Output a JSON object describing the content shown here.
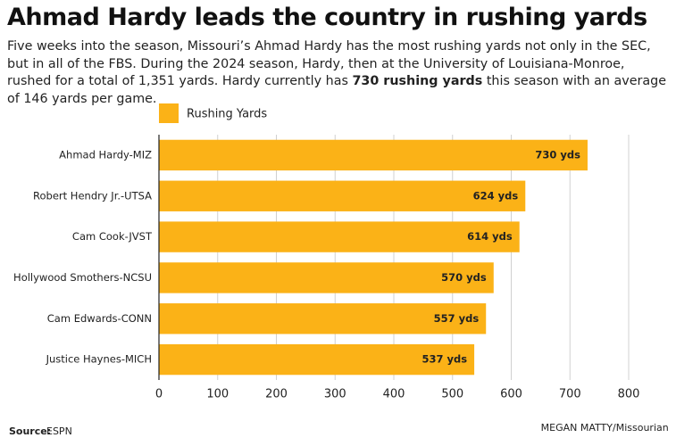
{
  "chart_data": {
    "type": "bar",
    "orientation": "horizontal",
    "title": "Ahmad Hardy leads the country in rushing yards",
    "subtitle": [
      "Five weeks into the season, Missouri’s Ahmad Hardy has the most rushing yards not only in the SEC, but in all of the FBS. During the 2024 season, Hardy, then at the University of Louisiana-Monroe, rushed for a total of 1,351 yards. Hardy currently has",
      "730 rushing yards",
      "this season with an average of 146 yards per game."
    ],
    "categories": [
      "Ahmad Hardy-MIZ",
      "Robert Hendry Jr.-UTSA",
      "Cam Cook-JVST",
      "Hollywood Smothers-NCSU",
      "Cam Edwards-CONN",
      "Justice Haynes-MICH"
    ],
    "series": [
      {
        "name": "Rushing Yards",
        "color": "#fbb217",
        "values": [
          730,
          624,
          614,
          570,
          557,
          537
        ],
        "value_labels": [
          "730 yds",
          "624 yds",
          "614 yds",
          "570 yds",
          "557 yds",
          "537 yds"
        ]
      }
    ],
    "xlim": [
      0,
      800
    ],
    "xticks": [
      0,
      100,
      200,
      300,
      400,
      500,
      600,
      700,
      800
    ],
    "grid": true,
    "source_label": "Source:",
    "source": "ESPN",
    "credit": "MEGAN MATTY",
    "publication": "/Missourian"
  }
}
